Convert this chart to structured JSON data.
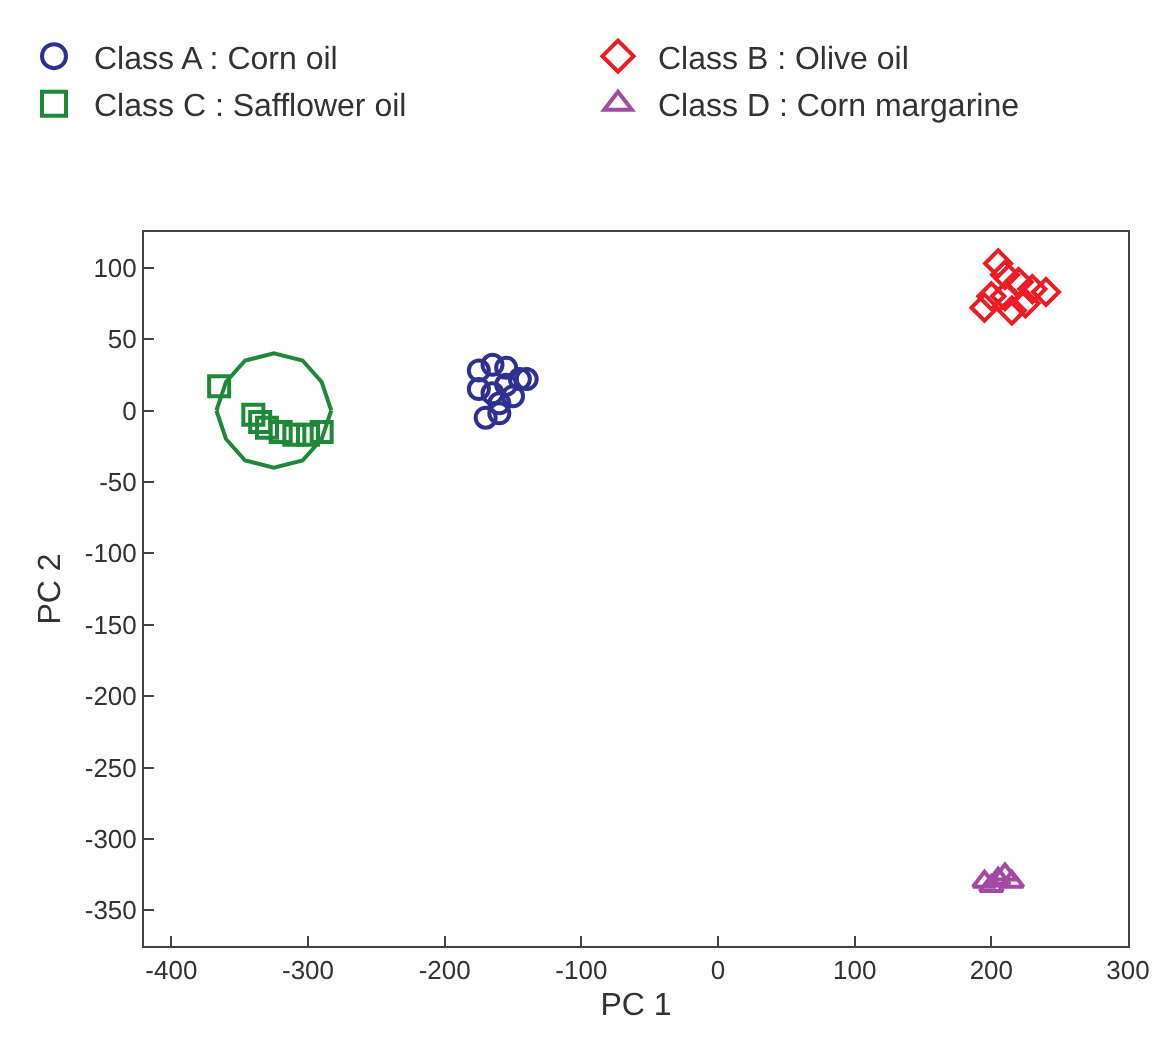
{
  "chart_data": {
    "type": "scatter",
    "xlabel": "PC 1",
    "ylabel": "PC 2",
    "xlim": [
      -420,
      300
    ],
    "xticks": [
      -400,
      -300,
      -200,
      -100,
      0,
      100,
      200,
      300
    ],
    "ylim": [
      -375,
      125
    ],
    "yticks": [
      100,
      50,
      0,
      -50,
      -100,
      -150,
      -200,
      -250,
      -300,
      -350
    ],
    "grid": false,
    "legend": "top",
    "series": [
      {
        "name": "Class A : Corn oil",
        "color": "#2e3192",
        "marker": "circle",
        "x": [
          -175,
          -165,
          -155,
          -145,
          -140,
          -150,
          -160,
          -170,
          -165,
          -175,
          -155,
          -160
        ],
        "values": [
          28,
          32,
          30,
          22,
          22,
          10,
          5,
          -5,
          12,
          15,
          18,
          -2
        ]
      },
      {
        "name": "Class B : Olive oil",
        "color": "#ed1c24",
        "marker": "diamond",
        "x": [
          205,
          195,
          210,
          220,
          230,
          240,
          215,
          225,
          200,
          210
        ],
        "values": [
          103,
          72,
          95,
          90,
          85,
          83,
          70,
          75,
          80,
          80
        ]
      },
      {
        "name": "Class C : Safflower oil",
        "color": "#1e8a38",
        "marker": "square",
        "x": [
          -365,
          -340,
          -335,
          -330,
          -320,
          -310,
          -300,
          -290
        ],
        "values": [
          17,
          -3,
          -8,
          -12,
          -15,
          -17,
          -17,
          -15
        ]
      },
      {
        "name": "Class D : Corn margarine",
        "color": "#a349a4",
        "marker": "triangle",
        "x": [
          195,
          205,
          210,
          200,
          215
        ],
        "values": [
          -330,
          -328,
          -325,
          -333,
          -330
        ]
      },
      {
        "type": "line",
        "color": "#1e8a38",
        "x": [
          -367,
          -360,
          -346,
          -325,
          -304,
          -290,
          -283
        ],
        "values": [
          0,
          20,
          35,
          40,
          35,
          20,
          0
        ]
      },
      {
        "type": "line",
        "color": "#1e8a38",
        "x": [
          -367,
          -360,
          -346,
          -325,
          -304,
          -290,
          -283
        ],
        "values": [
          0,
          -20,
          -35,
          -40,
          -35,
          -20,
          0
        ]
      }
    ]
  }
}
